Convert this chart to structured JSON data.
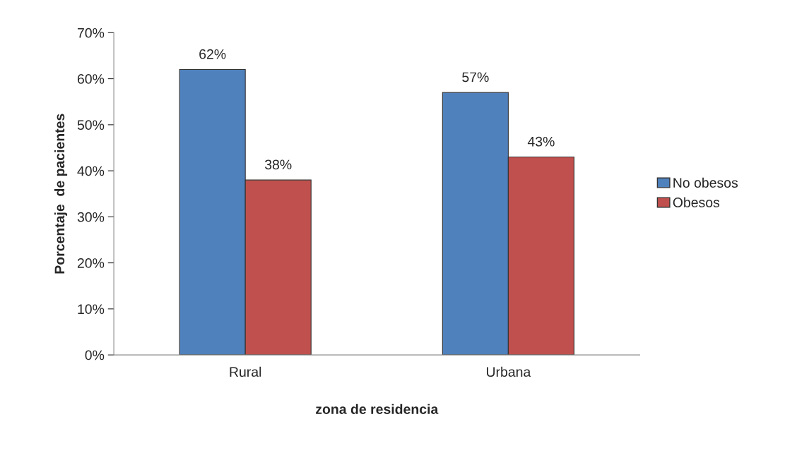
{
  "chart_data": {
    "type": "bar",
    "xlabel": "zona de residencia",
    "ylabel": "Porcentaje  de pacientes",
    "categories": [
      "Rural",
      "Urbana"
    ],
    "series": [
      {
        "name": "No obesos",
        "color": "#4f81bd",
        "values": [
          62,
          57
        ],
        "value_labels": [
          "62%",
          "57%"
        ]
      },
      {
        "name": "Obesos",
        "color": "#c0504d",
        "values": [
          38,
          43
        ],
        "value_labels": [
          "38%",
          "43%"
        ]
      }
    ],
    "ylim": [
      0,
      70
    ],
    "yticks": [
      {
        "value": 0,
        "label": "0%"
      },
      {
        "value": 10,
        "label": "10%"
      },
      {
        "value": 20,
        "label": "20%"
      },
      {
        "value": 30,
        "label": "30%"
      },
      {
        "value": 40,
        "label": "40%"
      },
      {
        "value": 50,
        "label": "50%"
      },
      {
        "value": 60,
        "label": "60%"
      },
      {
        "value": 70,
        "label": "70%"
      }
    ],
    "grid": false,
    "legend": "right"
  }
}
